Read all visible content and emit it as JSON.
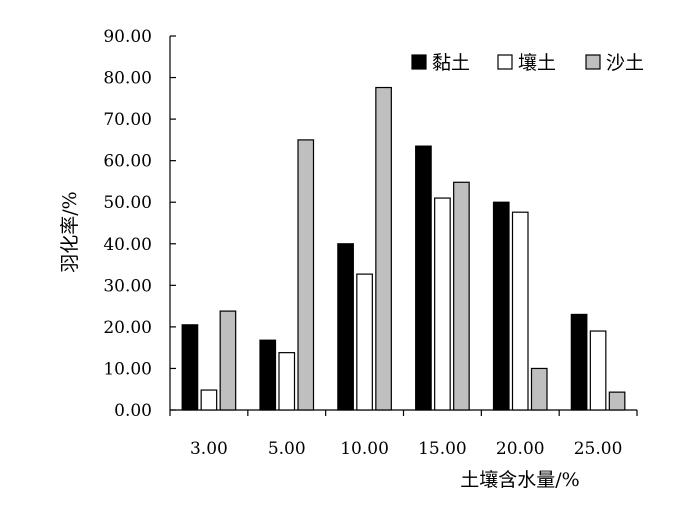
{
  "chart_data": {
    "type": "bar",
    "title": "",
    "xlabel": "土壤含水量/%",
    "ylabel": "羽化率/%",
    "ylim": [
      0,
      90
    ],
    "yticks": [
      "0.00",
      "10.00",
      "20.00",
      "30.00",
      "40.00",
      "50.00",
      "60.00",
      "70.00",
      "80.00",
      "90.00"
    ],
    "categories": [
      "3.00",
      "5.00",
      "10.00",
      "15.00",
      "20.00",
      "25.00"
    ],
    "series": [
      {
        "name": "黏土",
        "values": [
          20.5,
          16.8,
          40.0,
          63.5,
          50.0,
          23.0
        ],
        "color": "#000000"
      },
      {
        "name": "壤土",
        "values": [
          4.8,
          13.8,
          32.7,
          51.0,
          47.6,
          19.0
        ],
        "color": "#ffffff"
      },
      {
        "name": "沙土",
        "values": [
          23.8,
          65.0,
          77.6,
          54.8,
          10.0,
          4.3
        ],
        "color": "#bfbfbf"
      }
    ],
    "grid": false,
    "legend_position": "top-right"
  }
}
